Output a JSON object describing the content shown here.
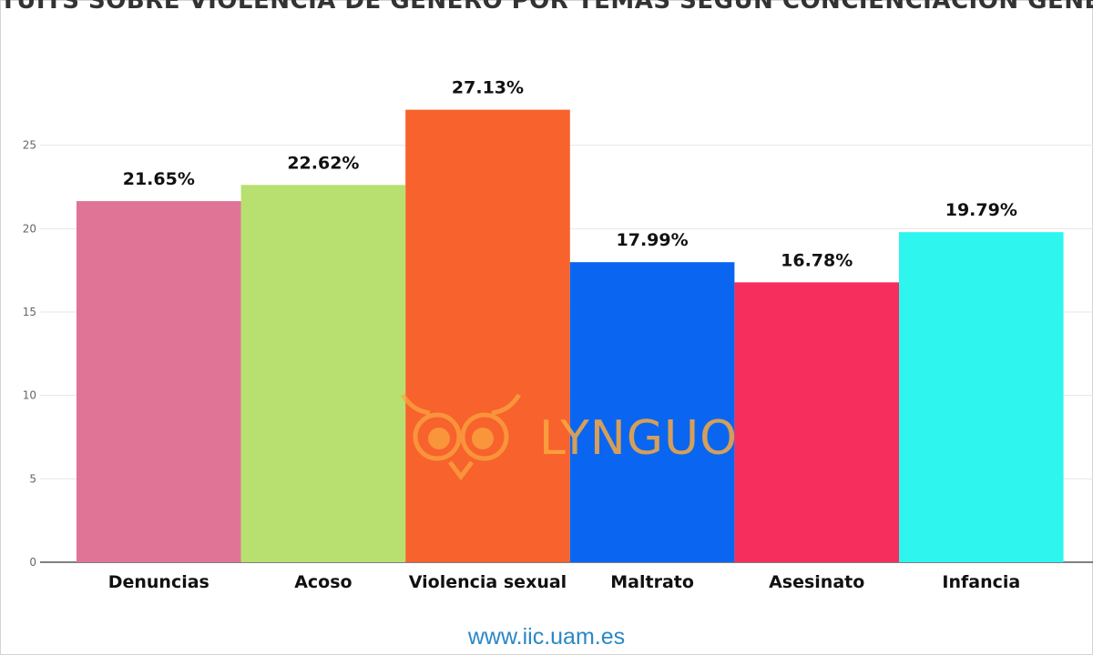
{
  "chart_data": {
    "type": "bar",
    "title": "TUITS SOBRE VIOLENCIA DE GÉNERO POR TEMAS SEGÚN CONCIENCIACIÓN GENERADA",
    "categories": [
      "Denuncias",
      "Acoso",
      "Violencia sexual",
      "Maltrato",
      "Asesinato",
      "Infancia"
    ],
    "values": [
      21.65,
      22.62,
      27.13,
      17.99,
      16.78,
      19.79
    ],
    "value_labels": [
      "21.65%",
      "22.62%",
      "27.13%",
      "17.99%",
      "16.78%",
      "19.79%"
    ],
    "colors": [
      "#e07496",
      "#b7e070",
      "#f7622d",
      "#0a66f0",
      "#f52e5d",
      "#2ff5ef"
    ],
    "ylim": [
      0,
      30
    ],
    "yticks": [
      0,
      5,
      10,
      15,
      20,
      25
    ],
    "grid": true,
    "xlabel": "",
    "ylabel": ""
  },
  "watermark": {
    "text": "LYNGUO",
    "color": "#f9a940"
  },
  "source": {
    "text": "www.iic.uam.es"
  }
}
